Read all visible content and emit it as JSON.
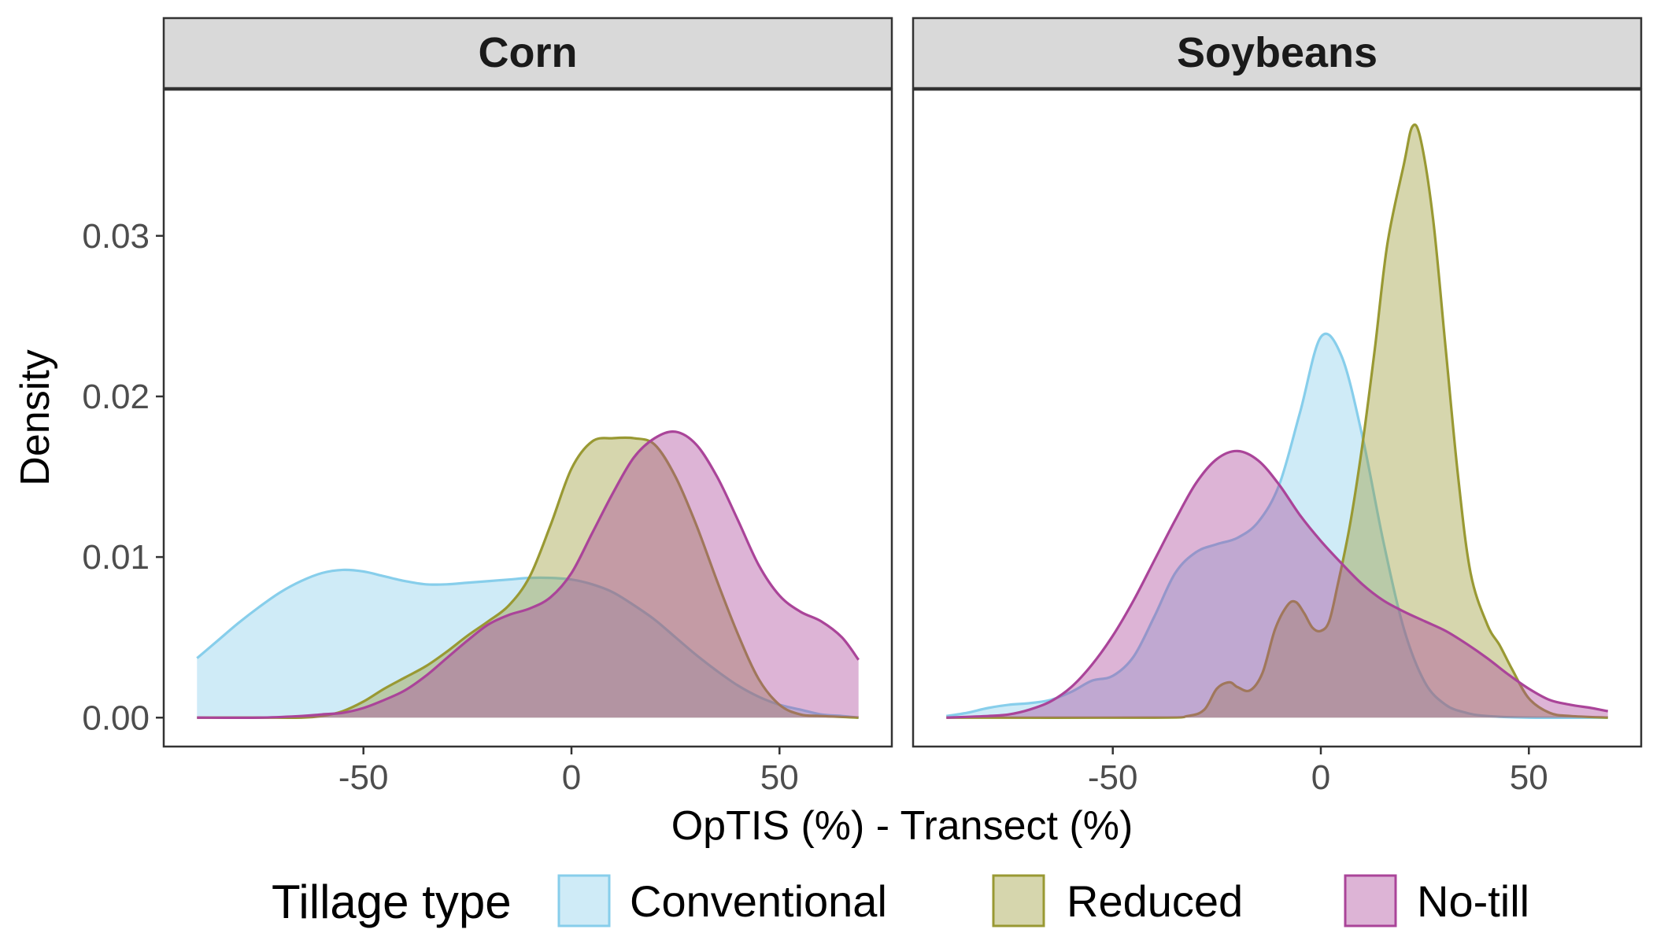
{
  "chart_data": {
    "type": "area",
    "chart_kind": "density",
    "ylabel": "Density",
    "xlabel": "OpTIS (%) - Transect (%)",
    "xlim": [
      -98,
      77
    ],
    "ylim": [
      -0.0018,
      0.0391
    ],
    "x_ticks": [
      -50,
      0,
      50
    ],
    "x_tick_labels": [
      "-50",
      "0",
      "50"
    ],
    "y_ticks": [
      0,
      0.01,
      0.02,
      0.03
    ],
    "y_tick_labels": [
      "0.00",
      "0.01",
      "0.02",
      "0.03"
    ],
    "grid": false,
    "legend": {
      "title": "Tillage type",
      "position": "bottom",
      "entries": [
        "Conventional",
        "Reduced",
        "No-till"
      ]
    },
    "series_styles": [
      {
        "name": "Conventional",
        "fill": "#87CEEB",
        "line": "#87CEEB",
        "fill_opacity": 0.4
      },
      {
        "name": "Reduced",
        "fill": "#999933",
        "line": "#999933",
        "fill_opacity": 0.4
      },
      {
        "name": "No-till",
        "fill": "#AA4499",
        "line": "#AA4499",
        "fill_opacity": 0.4
      }
    ],
    "panels": [
      {
        "title": "Corn",
        "series": [
          {
            "name": "Conventional",
            "points": [
              [
                -90,
                0.0037
              ],
              [
                -85,
                0.0048
              ],
              [
                -80,
                0.0059
              ],
              [
                -75,
                0.0069
              ],
              [
                -70,
                0.0078
              ],
              [
                -65,
                0.0085
              ],
              [
                -60,
                0.009
              ],
              [
                -55,
                0.0092
              ],
              [
                -50,
                0.0091
              ],
              [
                -45,
                0.0088
              ],
              [
                -40,
                0.0085
              ],
              [
                -35,
                0.0083
              ],
              [
                -30,
                0.0083
              ],
              [
                -25,
                0.0084
              ],
              [
                -20,
                0.0085
              ],
              [
                -15,
                0.0086
              ],
              [
                -10,
                0.0087
              ],
              [
                -5,
                0.0087
              ],
              [
                0,
                0.0086
              ],
              [
                5,
                0.0083
              ],
              [
                10,
                0.0078
              ],
              [
                15,
                0.007
              ],
              [
                20,
                0.0061
              ],
              [
                25,
                0.005
              ],
              [
                30,
                0.0039
              ],
              [
                35,
                0.0029
              ],
              [
                40,
                0.002
              ],
              [
                45,
                0.0013
              ],
              [
                50,
                0.0008
              ],
              [
                55,
                0.0005
              ],
              [
                60,
                0.0002
              ],
              [
                65,
                0.0001
              ],
              [
                69,
                0.0
              ]
            ]
          },
          {
            "name": "Reduced",
            "points": [
              [
                -90,
                0.0
              ],
              [
                -75,
                0.0
              ],
              [
                -65,
                0.0
              ],
              [
                -60,
                0.0001
              ],
              [
                -55,
                0.0004
              ],
              [
                -50,
                0.001
              ],
              [
                -45,
                0.0018
              ],
              [
                -40,
                0.0025
              ],
              [
                -35,
                0.0032
              ],
              [
                -30,
                0.0041
              ],
              [
                -25,
                0.0051
              ],
              [
                -20,
                0.006
              ],
              [
                -15,
                0.007
              ],
              [
                -10,
                0.0088
              ],
              [
                -5,
                0.012
              ],
              [
                0,
                0.0155
              ],
              [
                5,
                0.0172
              ],
              [
                10,
                0.0174
              ],
              [
                15,
                0.0174
              ],
              [
                20,
                0.017
              ],
              [
                25,
                0.015
              ],
              [
                30,
                0.012
              ],
              [
                35,
                0.0085
              ],
              [
                40,
                0.0052
              ],
              [
                45,
                0.0024
              ],
              [
                50,
                0.0008
              ],
              [
                55,
                0.0002
              ],
              [
                60,
                0.0001
              ],
              [
                69,
                0.0
              ]
            ]
          },
          {
            "name": "No-till",
            "points": [
              [
                -90,
                0.0
              ],
              [
                -75,
                0.0
              ],
              [
                -65,
                0.0001
              ],
              [
                -60,
                0.0002
              ],
              [
                -55,
                0.0003
              ],
              [
                -50,
                0.0006
              ],
              [
                -45,
                0.0011
              ],
              [
                -40,
                0.0017
              ],
              [
                -35,
                0.0026
              ],
              [
                -30,
                0.0037
              ],
              [
                -25,
                0.0048
              ],
              [
                -20,
                0.0058
              ],
              [
                -15,
                0.0064
              ],
              [
                -10,
                0.0068
              ],
              [
                -5,
                0.0075
              ],
              [
                0,
                0.009
              ],
              [
                5,
                0.0115
              ],
              [
                10,
                0.014
              ],
              [
                15,
                0.0162
              ],
              [
                20,
                0.0174
              ],
              [
                25,
                0.0178
              ],
              [
                30,
                0.017
              ],
              [
                35,
                0.015
              ],
              [
                40,
                0.0123
              ],
              [
                45,
                0.0095
              ],
              [
                50,
                0.0076
              ],
              [
                55,
                0.0066
              ],
              [
                60,
                0.006
              ],
              [
                65,
                0.005
              ],
              [
                69,
                0.0036
              ]
            ]
          }
        ]
      },
      {
        "title": "Soybeans",
        "series": [
          {
            "name": "Conventional",
            "points": [
              [
                -90,
                0.0001
              ],
              [
                -85,
                0.0003
              ],
              [
                -80,
                0.0006
              ],
              [
                -75,
                0.0008
              ],
              [
                -70,
                0.0009
              ],
              [
                -65,
                0.0011
              ],
              [
                -60,
                0.0016
              ],
              [
                -55,
                0.0023
              ],
              [
                -50,
                0.0026
              ],
              [
                -45,
                0.0038
              ],
              [
                -40,
                0.0063
              ],
              [
                -35,
                0.009
              ],
              [
                -30,
                0.0103
              ],
              [
                -25,
                0.0108
              ],
              [
                -20,
                0.0112
              ],
              [
                -15,
                0.0122
              ],
              [
                -10,
                0.0145
              ],
              [
                -5,
                0.019
              ],
              [
                0,
                0.0237
              ],
              [
                5,
                0.0225
              ],
              [
                10,
                0.0175
              ],
              [
                15,
                0.011
              ],
              [
                20,
                0.0055
              ],
              [
                25,
                0.0022
              ],
              [
                30,
                0.0008
              ],
              [
                35,
                0.0003
              ],
              [
                40,
                0.0001
              ],
              [
                50,
                0.0
              ],
              [
                69,
                0.0
              ]
            ]
          },
          {
            "name": "Reduced",
            "points": [
              [
                -90,
                0.0
              ],
              [
                -40,
                0.0
              ],
              [
                -32,
                0.0001
              ],
              [
                -28,
                0.0005
              ],
              [
                -25,
                0.0018
              ],
              [
                -22,
                0.0022
              ],
              [
                -20,
                0.0019
              ],
              [
                -17,
                0.0017
              ],
              [
                -14,
                0.0028
              ],
              [
                -11,
                0.0055
              ],
              [
                -8,
                0.007
              ],
              [
                -6,
                0.0072
              ],
              [
                -4,
                0.0065
              ],
              [
                -2,
                0.0056
              ],
              [
                0,
                0.0054
              ],
              [
                2,
                0.006
              ],
              [
                4,
                0.0082
              ],
              [
                7,
                0.012
              ],
              [
                10,
                0.017
              ],
              [
                13,
                0.023
              ],
              [
                16,
                0.0295
              ],
              [
                20,
                0.0345
              ],
              [
                22,
                0.0368
              ],
              [
                24,
                0.036
              ],
              [
                27,
                0.031
              ],
              [
                30,
                0.023
              ],
              [
                33,
                0.015
              ],
              [
                36,
                0.009
              ],
              [
                40,
                0.0058
              ],
              [
                43,
                0.0045
              ],
              [
                46,
                0.003
              ],
              [
                50,
                0.0012
              ],
              [
                55,
                0.0003
              ],
              [
                60,
                0.0001
              ],
              [
                69,
                0.0
              ]
            ]
          },
          {
            "name": "No-till",
            "points": [
              [
                -90,
                0.0
              ],
              [
                -80,
                0.0001
              ],
              [
                -75,
                0.0002
              ],
              [
                -70,
                0.0005
              ],
              [
                -65,
                0.001
              ],
              [
                -60,
                0.0019
              ],
              [
                -55,
                0.0033
              ],
              [
                -50,
                0.0051
              ],
              [
                -45,
                0.0073
              ],
              [
                -40,
                0.0098
              ],
              [
                -35,
                0.0123
              ],
              [
                -30,
                0.0146
              ],
              [
                -25,
                0.0161
              ],
              [
                -20,
                0.0166
              ],
              [
                -15,
                0.016
              ],
              [
                -10,
                0.0145
              ],
              [
                -5,
                0.0126
              ],
              [
                0,
                0.011
              ],
              [
                5,
                0.0096
              ],
              [
                10,
                0.0083
              ],
              [
                15,
                0.0073
              ],
              [
                20,
                0.0066
              ],
              [
                25,
                0.006
              ],
              [
                30,
                0.0054
              ],
              [
                35,
                0.0046
              ],
              [
                40,
                0.0037
              ],
              [
                45,
                0.0027
              ],
              [
                50,
                0.0018
              ],
              [
                55,
                0.0011
              ],
              [
                60,
                0.0008
              ],
              [
                65,
                0.0006
              ],
              [
                69,
                0.0004
              ]
            ]
          }
        ]
      }
    ]
  }
}
